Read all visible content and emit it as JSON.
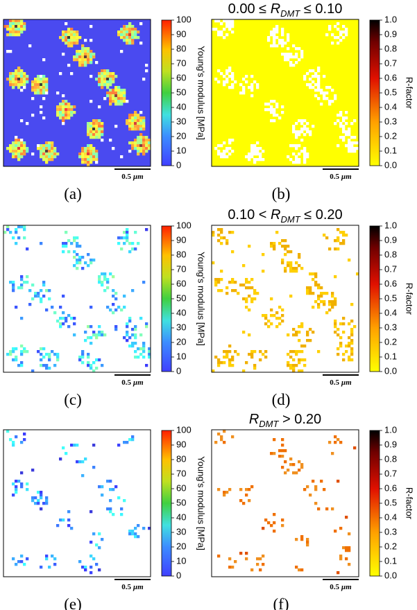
{
  "panels": [
    {
      "label": "(a)",
      "scale": "modulus"
    },
    {
      "label": "(b)",
      "scale": "rfactor",
      "title": {
        "before": "0.00 ≤ ",
        "var": "R",
        "sub": "DMT",
        "after": " ≤ 0.10"
      }
    },
    {
      "label": "(c)",
      "scale": "modulus"
    },
    {
      "label": "(d)",
      "scale": "rfactor",
      "title": {
        "before": "0.10 < ",
        "var": "R",
        "sub": "DMT",
        "after": " ≤ 0.20"
      }
    },
    {
      "label": "(e)",
      "scale": "modulus"
    },
    {
      "label": "(f)",
      "scale": "rfactor",
      "title": {
        "var": "R",
        "sub": "DMT",
        "after": " > 0.20"
      }
    }
  ],
  "scale_bar": {
    "number": "0.5",
    "unit": "μm"
  },
  "colorbars": {
    "modulus": {
      "label": "Young's modulus [MPa]",
      "lim": [
        0,
        100
      ],
      "ticks": [
        0,
        10,
        20,
        30,
        40,
        50,
        60,
        70,
        80,
        90,
        100
      ]
    },
    "rfactor": {
      "label": "R-factor",
      "lim": [
        0,
        1
      ],
      "ticks": [
        {
          "value": 0,
          "label": "0.0"
        },
        {
          "value": 0.1,
          "label": "0.1"
        },
        {
          "value": 0.2,
          "label": "0.2"
        },
        {
          "value": 0.3,
          "label": "0.3"
        },
        {
          "value": 0.4,
          "label": "0.4"
        },
        {
          "value": 0.5,
          "label": "0.5"
        },
        {
          "value": 0.6,
          "label": "0.6"
        },
        {
          "value": 0.7,
          "label": "0.7"
        },
        {
          "value": 0.8,
          "label": "0.8"
        },
        {
          "value": 0.9,
          "label": "0.9"
        },
        {
          "value": 1,
          "label": "1.0"
        }
      ]
    }
  }
}
